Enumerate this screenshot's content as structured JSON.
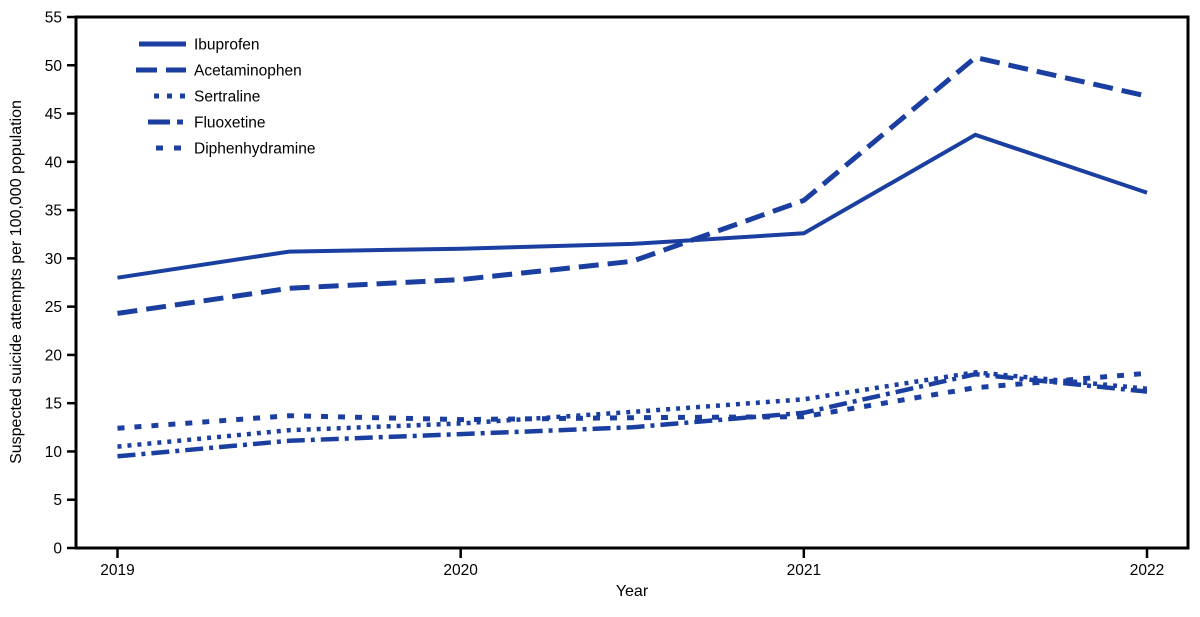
{
  "chart_data": {
    "type": "line",
    "title": "",
    "xlabel": "Year",
    "ylabel": "Suspected suicide attempts per 100,000 population",
    "x": [
      2019,
      2019.5,
      2020,
      2020.5,
      2021,
      2021.5,
      2022
    ],
    "x_ticks": {
      "values": [
        2019,
        2020,
        2021,
        2022
      ],
      "labels": [
        "2019",
        "2020",
        "2021",
        "2022"
      ]
    },
    "ylim": [
      0,
      55
    ],
    "y_tick_step": 5,
    "grid": false,
    "legend_position": "upper-left",
    "colors": {
      "line": "#1A3FA0",
      "axis": "#000000",
      "background": "#FFFFFF"
    },
    "series": [
      {
        "name": "Ibuprofen",
        "dash": "solid",
        "values": [
          28.0,
          30.7,
          31.0,
          31.5,
          32.6,
          42.8,
          36.8
        ]
      },
      {
        "name": "Acetaminophen",
        "dash": "dashed",
        "values": [
          24.3,
          26.9,
          27.8,
          29.7,
          36.0,
          50.8,
          46.8
        ]
      },
      {
        "name": "Sertraline",
        "dash": "dotted",
        "values": [
          10.5,
          12.2,
          12.9,
          14.1,
          15.4,
          18.2,
          16.5
        ]
      },
      {
        "name": "Fluoxetine",
        "dash": "dashdot",
        "values": [
          9.5,
          11.1,
          11.8,
          12.5,
          14.0,
          18.0,
          16.2
        ]
      },
      {
        "name": "Diphenhydramine",
        "dash": "squaredash",
        "values": [
          12.4,
          13.7,
          13.3,
          13.5,
          13.6,
          16.6,
          18.1
        ]
      }
    ]
  }
}
